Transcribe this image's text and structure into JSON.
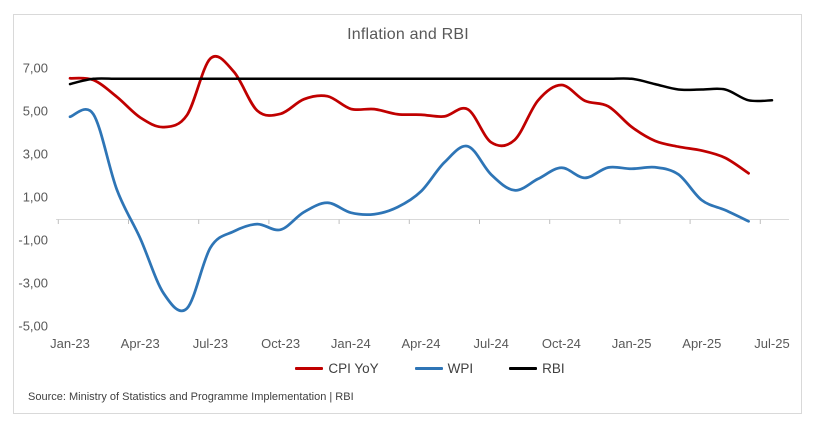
{
  "source_note": "Source: Ministry of Statistics and Programme Implementation | RBI",
  "colors": {
    "card_border": "#d9d9d9",
    "axis_line": "#d9d9d9",
    "tick_mark": "#bfbfbf",
    "axis_label": "#595959",
    "title_text": "#595959",
    "legend_text": "#404040"
  },
  "chart_data": {
    "type": "line",
    "title": "Inflation and RBI",
    "smoothed": true,
    "legend_position": "bottom",
    "gridlines": "zero-line-only",
    "ylim": [
      -5,
      8
    ],
    "y_tick_labels": [
      "7,00",
      "5,00",
      "3,00",
      "1,00",
      "-1,00",
      "-3,00",
      "-5,00"
    ],
    "y_tick_values": [
      7,
      5,
      3,
      1,
      -1,
      -3,
      -5
    ],
    "x_tick_labels": [
      "Jan-23",
      "Apr-23",
      "Jul-23",
      "Oct-23",
      "Jan-24",
      "Apr-24",
      "Jul-24",
      "Oct-24",
      "Jan-25",
      "Apr-25",
      "Jul-25"
    ],
    "x_tick_every": 3,
    "categories": [
      "Jan-23",
      "Feb-23",
      "Mar-23",
      "Apr-23",
      "May-23",
      "Jun-23",
      "Jul-23",
      "Aug-23",
      "Sep-23",
      "Oct-23",
      "Nov-23",
      "Dec-23",
      "Jan-24",
      "Feb-24",
      "Mar-24",
      "Apr-24",
      "May-24",
      "Jun-24",
      "Jul-24",
      "Aug-24",
      "Sep-24",
      "Oct-24",
      "Nov-24",
      "Dec-24",
      "Jan-25",
      "Feb-25",
      "Mar-25",
      "Apr-25",
      "May-25",
      "Jun-25",
      "Jul-25"
    ],
    "series": [
      {
        "name": "CPI YoY",
        "color": "#c00000",
        "width": 2.75,
        "values": [
          6.52,
          6.44,
          5.66,
          4.7,
          4.25,
          4.81,
          7.44,
          6.83,
          5.02,
          4.87,
          5.55,
          5.69,
          5.1,
          5.09,
          4.85,
          4.83,
          4.75,
          5.08,
          3.54,
          3.65,
          5.49,
          6.21,
          5.48,
          5.22,
          4.26,
          3.61,
          3.34,
          3.16,
          2.82,
          2.1,
          null
        ]
      },
      {
        "name": "WPI",
        "color": "#2e75b6",
        "width": 2.75,
        "values": [
          4.73,
          4.85,
          1.35,
          -0.92,
          -3.48,
          -4.18,
          -1.36,
          -0.6,
          -0.26,
          -0.52,
          0.3,
          0.73,
          0.27,
          0.2,
          0.53,
          1.26,
          2.61,
          3.36,
          2.04,
          1.31,
          1.84,
          2.36,
          1.89,
          2.37,
          2.31,
          2.38,
          2.05,
          0.85,
          0.39,
          -0.13,
          null
        ]
      },
      {
        "name": "RBI",
        "color": "#000000",
        "width": 2.5,
        "values": [
          6.25,
          6.5,
          6.5,
          6.5,
          6.5,
          6.5,
          6.5,
          6.5,
          6.5,
          6.5,
          6.5,
          6.5,
          6.5,
          6.5,
          6.5,
          6.5,
          6.5,
          6.5,
          6.5,
          6.5,
          6.5,
          6.5,
          6.5,
          6.5,
          6.5,
          6.25,
          6.0,
          6.0,
          6.0,
          5.5,
          5.5
        ]
      }
    ]
  }
}
